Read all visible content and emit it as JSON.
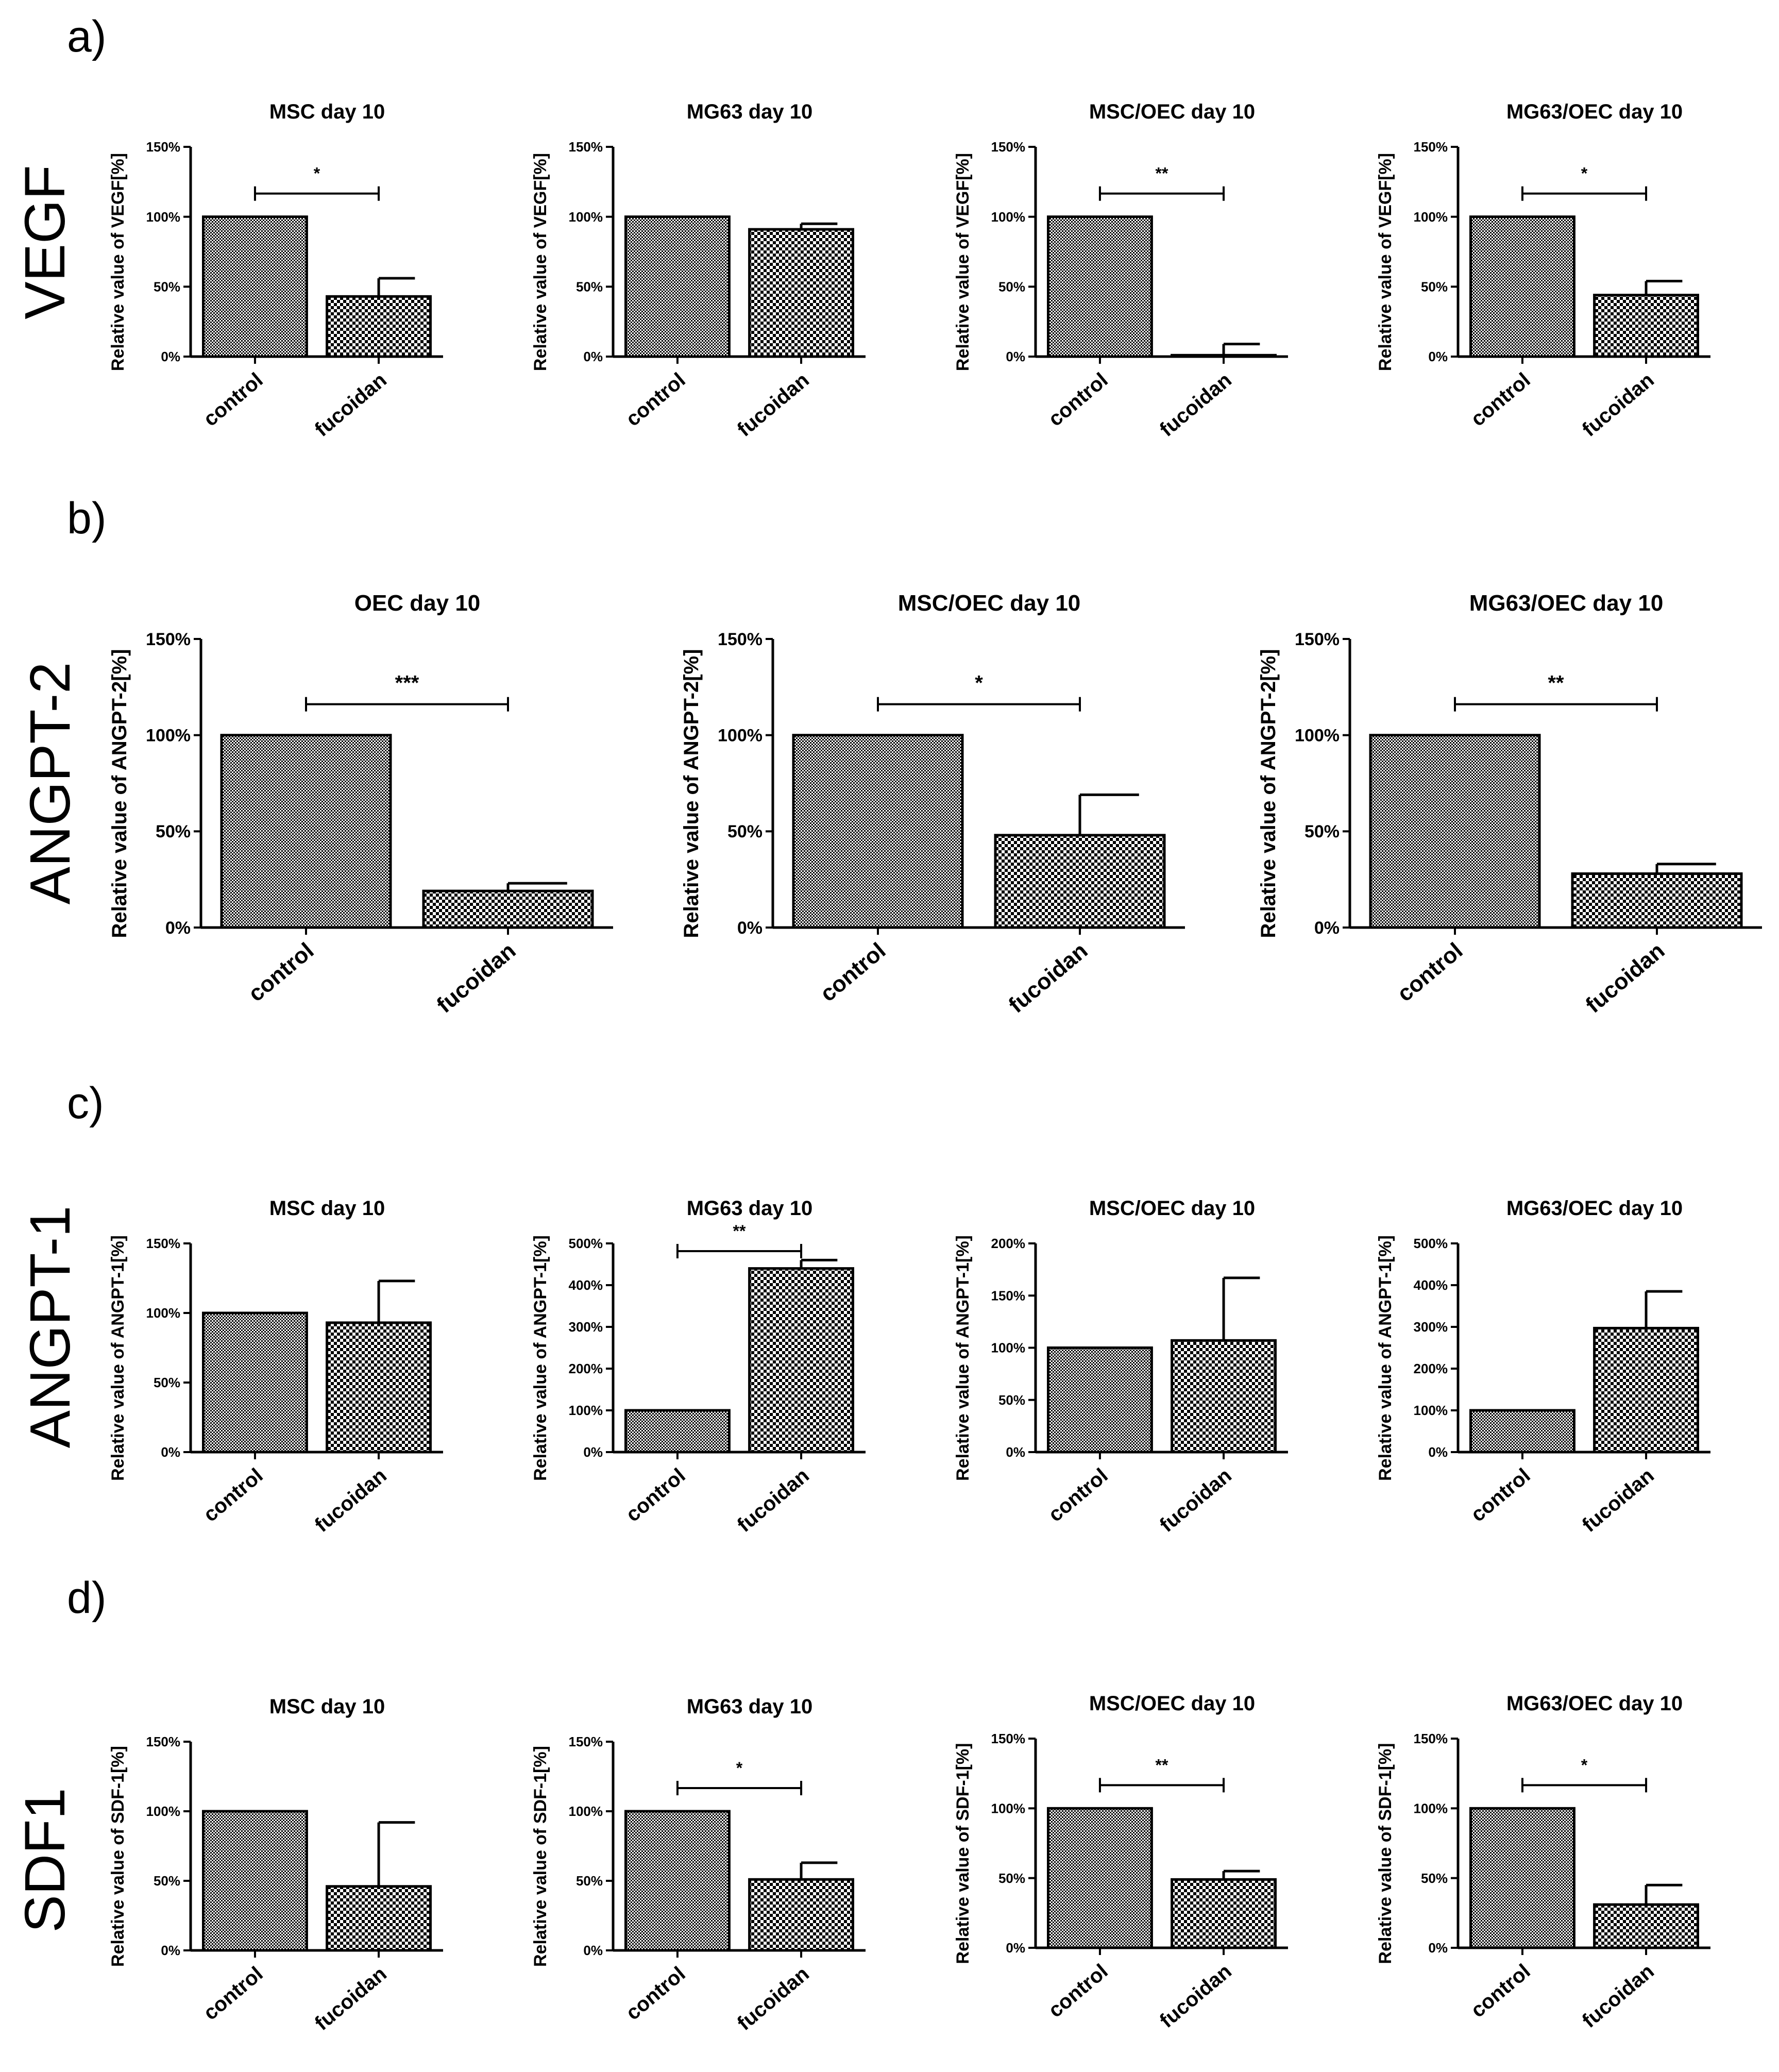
{
  "panels": [
    {
      "letter": "a)",
      "gene": "VEGF",
      "charts": [
        {
          "title": "MSC day 10",
          "ylabel": "Relative value of VEGF[%]"
        },
        {
          "title": "MG63 day 10",
          "ylabel": "Relative value of VEGF[%]"
        },
        {
          "title": "MSC/OEC day 10",
          "ylabel": "Relative value of VEGF[%]"
        },
        {
          "title": "MG63/OEC day 10",
          "ylabel": "Relative value of VEGF[%]"
        }
      ]
    },
    {
      "letter": "b)",
      "gene": "ANGPT-2",
      "charts": [
        {
          "title": "OEC day 10",
          "ylabel": "Relative value of ANGPT-2[%]"
        },
        {
          "title": "MSC/OEC day 10",
          "ylabel": "Relative value of ANGPT-2[%]"
        },
        {
          "title": "MG63/OEC day 10",
          "ylabel": "Relative value of ANGPT-2[%]"
        }
      ]
    },
    {
      "letter": "c)",
      "gene": "ANGPT-1",
      "charts": [
        {
          "title": "MSC day 10",
          "ylabel": "Relative value of ANGPT-1[%]"
        },
        {
          "title": "MG63 day 10",
          "ylabel": "Relative value of ANGPT-1[%]"
        },
        {
          "title": "MSC/OEC day 10",
          "ylabel": "Relative value of ANGPT-1[%]"
        },
        {
          "title": "MG63/OEC day 10",
          "ylabel": "Relative value of ANGPT-1[%]"
        }
      ]
    },
    {
      "letter": "d)",
      "gene": "SDF1",
      "charts": [
        {
          "title": "MSC day 10",
          "ylabel": "Relative value of SDF-1[%]"
        },
        {
          "title": "MG63 day 10",
          "ylabel": "Relative value of SDF-1[%]"
        },
        {
          "title": "MSC/OEC day 10",
          "ylabel": "Relative value of SDF-1[%]"
        },
        {
          "title": "MG63/OEC day 10",
          "ylabel": "Relative value of SDF-1[%]"
        }
      ]
    }
  ],
  "colors": {
    "bar_stroke": "#000000",
    "pattern_fill": "#000000",
    "background": "#ffffff"
  },
  "chart_data": [
    {
      "panel": "a)",
      "type": "bar",
      "title": "MSC day 10",
      "ylabel": "Relative value of VEGF[%]",
      "categories": [
        "control",
        "fucoidan"
      ],
      "values": [
        100,
        43
      ],
      "errors": [
        0,
        13
      ],
      "ylim": [
        0,
        150
      ],
      "yticks": [
        "0%",
        "50%",
        "100%",
        "150%"
      ],
      "significance": "*"
    },
    {
      "panel": "a)",
      "type": "bar",
      "title": "MG63 day 10",
      "ylabel": "Relative value of VEGF[%]",
      "categories": [
        "control",
        "fucoidan"
      ],
      "values": [
        100,
        91
      ],
      "errors": [
        0,
        4
      ],
      "ylim": [
        0,
        150
      ],
      "yticks": [
        "0%",
        "50%",
        "100%",
        "150%"
      ],
      "significance": ""
    },
    {
      "panel": "a)",
      "type": "bar",
      "title": "MSC/OEC day 10",
      "ylabel": "Relative value of VEGF[%]",
      "categories": [
        "control",
        "fucoidan"
      ],
      "values": [
        100,
        1
      ],
      "errors": [
        0,
        8
      ],
      "ylim": [
        0,
        150
      ],
      "yticks": [
        "0%",
        "50%",
        "100%",
        "150%"
      ],
      "significance": "**"
    },
    {
      "panel": "a)",
      "type": "bar",
      "title": "MG63/OEC day 10",
      "ylabel": "Relative value of VEGF[%]",
      "categories": [
        "control",
        "fucoidan"
      ],
      "values": [
        100,
        44
      ],
      "errors": [
        0,
        10
      ],
      "ylim": [
        0,
        150
      ],
      "yticks": [
        "0%",
        "50%",
        "100%",
        "150%"
      ],
      "significance": "*"
    },
    {
      "panel": "b)",
      "type": "bar",
      "title": "OEC day 10",
      "ylabel": "Relative value of ANGPT-2[%]",
      "categories": [
        "control",
        "fucoidan"
      ],
      "values": [
        100,
        19
      ],
      "errors": [
        0,
        4
      ],
      "ylim": [
        0,
        150
      ],
      "yticks": [
        "0%",
        "50%",
        "100%",
        "150%"
      ],
      "significance": "***"
    },
    {
      "panel": "b)",
      "type": "bar",
      "title": "MSC/OEC day 10",
      "ylabel": "Relative value of ANGPT-2[%]",
      "categories": [
        "control",
        "fucoidan"
      ],
      "values": [
        100,
        48
      ],
      "errors": [
        0,
        21
      ],
      "ylim": [
        0,
        150
      ],
      "yticks": [
        "0%",
        "50%",
        "100%",
        "150%"
      ],
      "significance": "*"
    },
    {
      "panel": "b)",
      "type": "bar",
      "title": "MG63/OEC day 10",
      "ylabel": "Relative value of ANGPT-2[%]",
      "categories": [
        "control",
        "fucoidan"
      ],
      "values": [
        100,
        28
      ],
      "errors": [
        0,
        5
      ],
      "ylim": [
        0,
        150
      ],
      "yticks": [
        "0%",
        "50%",
        "100%",
        "150%"
      ],
      "significance": "**"
    },
    {
      "panel": "c)",
      "type": "bar",
      "title": "MSC day 10",
      "ylabel": "Relative value of ANGPT-1[%]",
      "categories": [
        "control",
        "fucoidan"
      ],
      "values": [
        100,
        93
      ],
      "errors": [
        0,
        30
      ],
      "ylim": [
        0,
        150
      ],
      "yticks": [
        "0%",
        "50%",
        "100%",
        "150%"
      ],
      "significance": ""
    },
    {
      "panel": "c)",
      "type": "bar",
      "title": "MG63 day 10",
      "ylabel": "Relative value of ANGPT-1[%]",
      "categories": [
        "control",
        "fucoidan"
      ],
      "values": [
        100,
        440
      ],
      "errors": [
        0,
        20
      ],
      "ylim": [
        0,
        500
      ],
      "yticks": [
        "0%",
        "100%",
        "200%",
        "300%",
        "400%",
        "500%"
      ],
      "significance": "**"
    },
    {
      "panel": "c)",
      "type": "bar",
      "title": "MSC/OEC day 10",
      "ylabel": "Relative value of ANGPT-1[%]",
      "categories": [
        "control",
        "fucoidan"
      ],
      "values": [
        100,
        107
      ],
      "errors": [
        0,
        60
      ],
      "ylim": [
        0,
        200
      ],
      "yticks": [
        "0%",
        "50%",
        "100%",
        "150%",
        "200%"
      ],
      "significance": ""
    },
    {
      "panel": "c)",
      "type": "bar",
      "title": "MG63/OEC day 10",
      "ylabel": "Relative value of ANGPT-1[%]",
      "categories": [
        "control",
        "fucoidan"
      ],
      "values": [
        100,
        297
      ],
      "errors": [
        0,
        88
      ],
      "ylim": [
        0,
        500
      ],
      "yticks": [
        "0%",
        "100%",
        "200%",
        "300%",
        "400%",
        "500%"
      ],
      "significance": ""
    },
    {
      "panel": "d)",
      "type": "bar",
      "title": "MSC day 10",
      "ylabel": "Relative value of SDF-1[%]",
      "categories": [
        "control",
        "fucoidan"
      ],
      "values": [
        100,
        46
      ],
      "errors": [
        0,
        46
      ],
      "ylim": [
        0,
        150
      ],
      "yticks": [
        "0%",
        "50%",
        "100%",
        "150%"
      ],
      "significance": ""
    },
    {
      "panel": "d)",
      "type": "bar",
      "title": "MG63 day 10",
      "ylabel": "Relative value of SDF-1[%]",
      "categories": [
        "control",
        "fucoidan"
      ],
      "values": [
        100,
        51
      ],
      "errors": [
        0,
        12
      ],
      "ylim": [
        0,
        150
      ],
      "yticks": [
        "0%",
        "50%",
        "100%",
        "150%"
      ],
      "significance": "*"
    },
    {
      "panel": "d)",
      "type": "bar",
      "title": "MSC/OEC day 10",
      "ylabel": "Relative value of SDF-1[%]",
      "categories": [
        "control",
        "fucoidan"
      ],
      "values": [
        100,
        49
      ],
      "errors": [
        0,
        6
      ],
      "ylim": [
        0,
        150
      ],
      "yticks": [
        "0%",
        "50%",
        "100%",
        "150%"
      ],
      "significance": "**"
    },
    {
      "panel": "d)",
      "type": "bar",
      "title": "MG63/OEC day 10",
      "ylabel": "Relative value of SDF-1[%]",
      "categories": [
        "control",
        "fucoidan"
      ],
      "values": [
        100,
        31
      ],
      "errors": [
        0,
        14
      ],
      "ylim": [
        0,
        150
      ],
      "yticks": [
        "0%",
        "50%",
        "100%",
        "150%"
      ],
      "significance": "*"
    }
  ]
}
